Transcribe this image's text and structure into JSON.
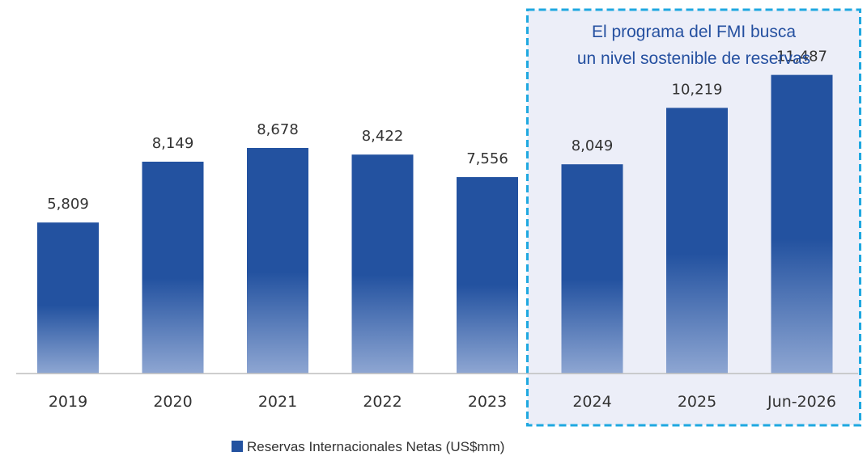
{
  "chart_data": {
    "type": "bar",
    "categories": [
      "2019",
      "2020",
      "2021",
      "2022",
      "2023",
      "2024",
      "2025",
      "Jun-2026"
    ],
    "series": [
      {
        "name": "Reservas Internacionales Netas (US$mm)",
        "values": [
          5809,
          8149,
          8678,
          8422,
          7556,
          8049,
          10219,
          11487
        ],
        "value_labels": [
          "5,809",
          "8,149",
          "8,678",
          "8,422",
          "7,556",
          "8,049",
          "10,219",
          "11,487"
        ]
      }
    ],
    "title": "",
    "xlabel": "",
    "ylabel": "",
    "ylim": [
      0,
      13000
    ],
    "grid": false,
    "legend": "bottom-center",
    "annotation": {
      "lines": [
        "El programa del FMI busca",
        "un nivel sostenible de reservas"
      ],
      "highlight_from": "2024",
      "highlight_to": "Jun-2026"
    },
    "colors": {
      "bar_top": "#2352a0",
      "bar_bottom": "#8ea6d2",
      "highlight_fill": "#eceef8",
      "highlight_border": "#1fa8e0",
      "annotation_text": "#2550a0",
      "axis": "#bdbdbd"
    }
  }
}
